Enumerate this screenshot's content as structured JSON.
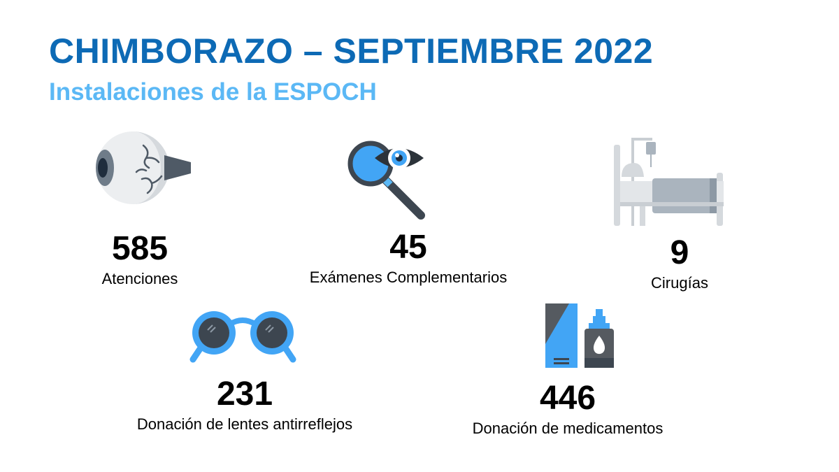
{
  "header": {
    "title": "CHIMBORAZO – SEPTIEMBRE 2022",
    "subtitle": "Instalaciones de la ESPOCH"
  },
  "stats": [
    {
      "value": "585",
      "label": "Atenciones",
      "icon": "eye-icon"
    },
    {
      "value": "45",
      "label": "Exámenes Complementarios",
      "icon": "magnifier-eye-icon"
    },
    {
      "value": "9",
      "label": "Cirugías",
      "icon": "hospital-bed-icon"
    },
    {
      "value": "231",
      "label": "Donación de lentes antirreflejos",
      "icon": "glasses-icon"
    },
    {
      "value": "446",
      "label": "Donación de medicamentos",
      "icon": "medicine-icon"
    }
  ],
  "colors": {
    "title": "#0d6ab5",
    "subtitle": "#5bb8f5",
    "accent_blue": "#42a5f5",
    "dark_gray": "#555a60",
    "light_gray": "#d9dde1"
  }
}
